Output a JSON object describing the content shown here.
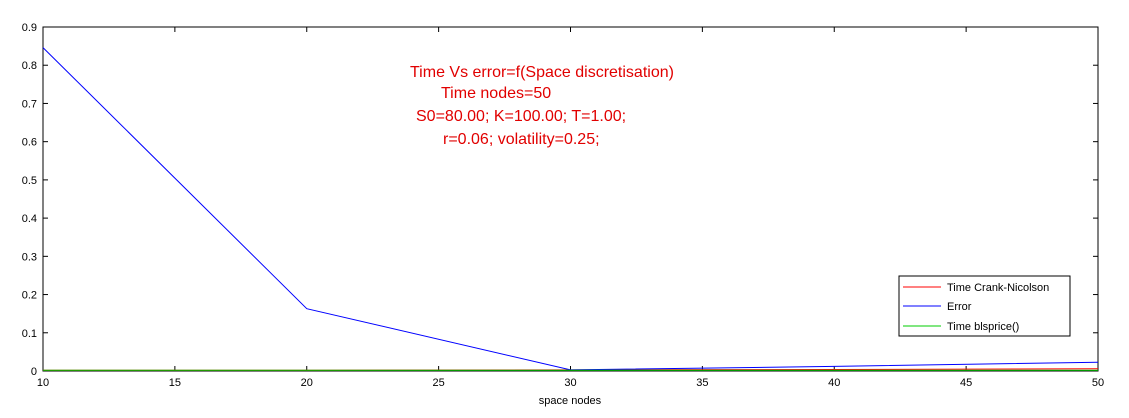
{
  "chart_data": {
    "type": "line",
    "xlabel": "space nodes",
    "ylabel": "",
    "xlim": [
      10,
      50
    ],
    "ylim": [
      0,
      0.9
    ],
    "xticks": [
      "10",
      "15",
      "20",
      "25",
      "30",
      "35",
      "40",
      "45",
      "50"
    ],
    "yticks": [
      "0",
      "0.1",
      "0.2",
      "0.3",
      "0.4",
      "0.5",
      "0.6",
      "0.7",
      "0.8",
      "0.9"
    ],
    "x": [
      10,
      20,
      30,
      40,
      50
    ],
    "series": [
      {
        "name": "Time Crank-Nicolson",
        "color": "#ff0000",
        "values": [
          0.002,
          0.002,
          0.003,
          0.004,
          0.006
        ]
      },
      {
        "name": "Error",
        "color": "#0000ff",
        "values": [
          0.846,
          0.163,
          0.003,
          0.012,
          0.023
        ]
      },
      {
        "name": "Time blsprice()",
        "color": "#00cc00",
        "values": [
          0.002,
          0.002,
          0.002,
          0.002,
          0.002
        ]
      }
    ],
    "annotations": [
      "Time Vs error=f(Space discretisation)",
      "Time nodes=50",
      "S0=80.00; K=100.00; T=1.00;",
      "r=0.06; volatility=0.25;"
    ],
    "legend_position": "bottom-right",
    "grid": false,
    "colors": {
      "annotation": "#e10000"
    }
  }
}
